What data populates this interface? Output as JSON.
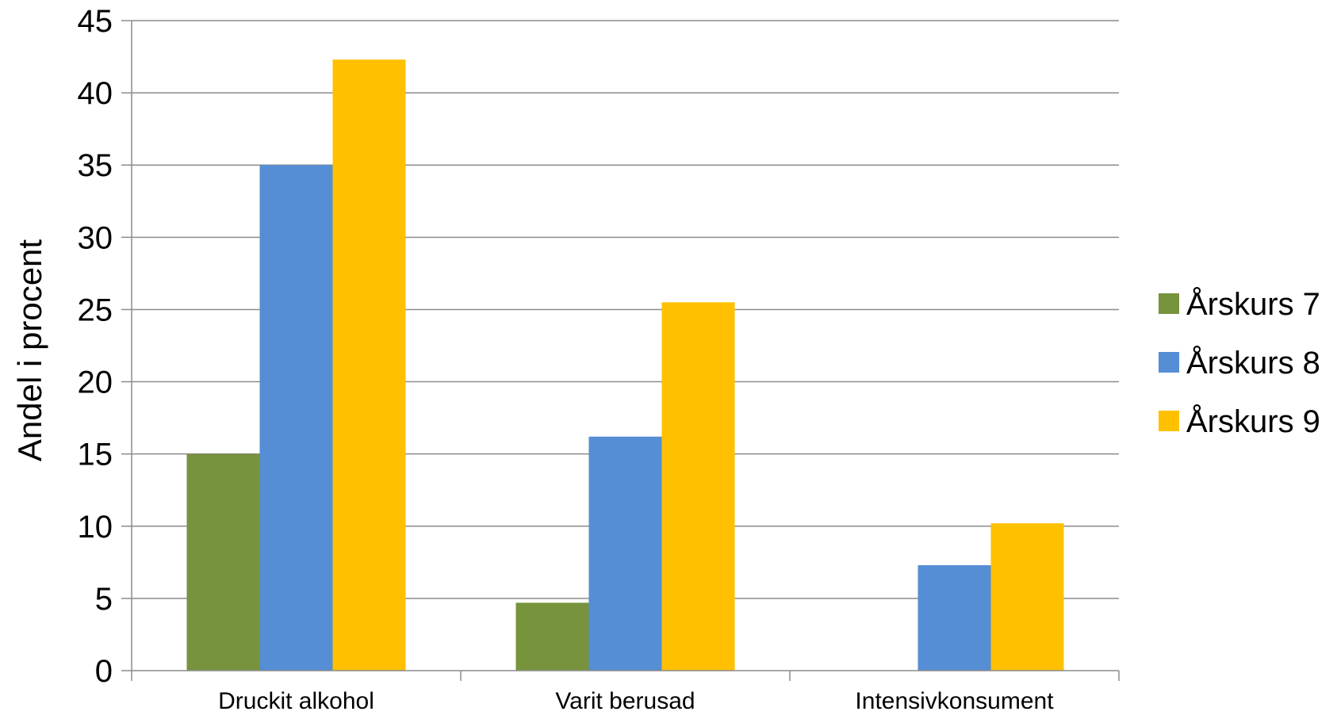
{
  "chart_data": {
    "type": "bar",
    "categories": [
      "Druckit alkohol",
      "Varit berusad",
      "Intensivkonsument"
    ],
    "series": [
      {
        "name": "Årskurs 7",
        "values": [
          15.0,
          4.7,
          0
        ],
        "color": "#77933C"
      },
      {
        "name": "Årskurs 8",
        "values": [
          35.0,
          16.2,
          7.3
        ],
        "color": "#558ED5"
      },
      {
        "name": "Årskurs 9",
        "values": [
          42.3,
          25.5,
          10.2
        ],
        "color": "#FFC000"
      }
    ],
    "title": "",
    "xlabel": "",
    "ylabel": "Andel i procent",
    "ylim": [
      0,
      45
    ],
    "yticks": [
      0,
      5,
      10,
      15,
      20,
      25,
      30,
      35,
      40,
      45
    ],
    "grid": true,
    "legend_position": "right",
    "gridline_color": "#8C8C8C",
    "axis_color": "#8C8C8C"
  }
}
